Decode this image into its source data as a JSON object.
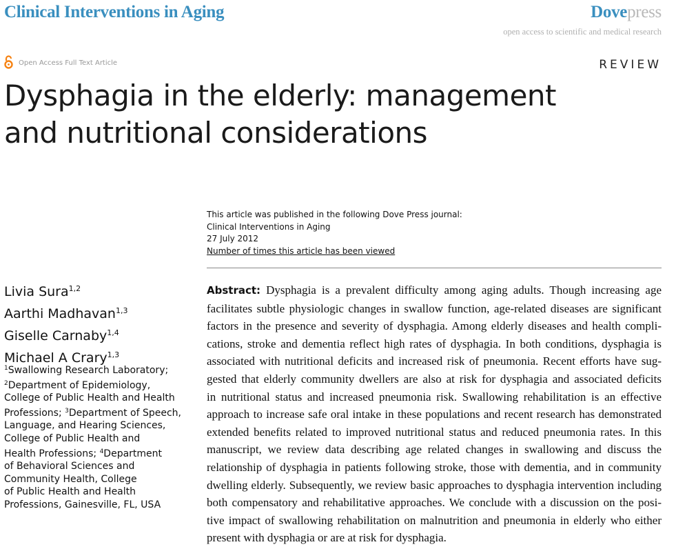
{
  "header": {
    "journal": "Clinical Interventions in Aging",
    "brand_part1": "Dove",
    "brand_part2": "press",
    "tagline": "open access to scientific and medical research",
    "open_access_label": "Open Access Full Text Article",
    "open_access_icon": "open-access-lock-icon",
    "article_type": "REVIEW",
    "accent_color": "#3a8fbf",
    "oa_color": "#f68212"
  },
  "title_lines": [
    "Dysphagia in the elderly: management",
    "and nutritional considerations"
  ],
  "pub_info": {
    "line1": "This article was published in the following Dove Press journal:",
    "journal": "Clinical Interventions in Aging",
    "date": "27 July 2012",
    "views_link": "Number of times this article has been viewed"
  },
  "authors": [
    {
      "name": "Livia Sura",
      "aff": "1,2"
    },
    {
      "name": "Aarthi Madhavan",
      "aff": "1,3"
    },
    {
      "name": "Giselle Carnaby",
      "aff": "1,4"
    },
    {
      "name": "Michael A Crary",
      "aff": "1,3"
    }
  ],
  "affiliation_lines": [
    {
      "sup": "1",
      "text": "Swallowing Research Laboratory;"
    },
    {
      "sup": "2",
      "text": "Department of Epidemiology,"
    },
    {
      "sup": "",
      "text": "College of Public Health and Health"
    },
    {
      "sup": "",
      "text": "Professions; ",
      "sup2": "3",
      "text2": "Department of Speech,"
    },
    {
      "sup": "",
      "text": "Language, and Hearing Sciences,"
    },
    {
      "sup": "",
      "text": "College of Public Health and"
    },
    {
      "sup": "",
      "text": "Health Professions; ",
      "sup2": "4",
      "text2": "Department"
    },
    {
      "sup": "",
      "text": "of Behavioral Sciences and"
    },
    {
      "sup": "",
      "text": "Community Health, College"
    },
    {
      "sup": "",
      "text": "of Public Health and Health"
    },
    {
      "sup": "",
      "text": "Professions, Gainesville, FL, USA"
    }
  ],
  "abstract": {
    "label": "Abstract:",
    "lines": [
      " Dysphagia is a prevalent difficulty among aging adults. Though increasing age",
      "facilitates subtle physiologic changes in swallow function, age-related diseases are significant",
      "factors in the presence and severity of dysphagia. Among elderly diseases and health compli-",
      "cations, stroke and dementia reflect high rates of dysphagia. In both conditions, dysphagia is",
      "associated with nutritional deficits and increased risk of pneumonia. Recent efforts have sug-",
      "gested that elderly community dwellers are also at risk for dysphagia and associated deficits",
      "in nutritional status and increased pneumonia risk. Swallowing rehabilitation is an effective",
      "approach to increase safe oral intake in these populations and recent research has demonstrated",
      "extended benefits related to improved nutritional status and reduced pneumonia rates. In this",
      "manuscript, we review data describing age related changes in swallowing and discuss the",
      "relationship of dysphagia in patients following stroke, those with dementia, and in community",
      "dwelling elderly. Subsequently, we review basic approaches to dysphagia intervention including",
      "both compensatory and rehabilitative approaches. We conclude with a discussion on the posi-",
      "tive impact of swallowing rehabilitation on malnutrition and pneumonia in elderly who either",
      "present with dysphagia or are at risk for dysphagia."
    ]
  }
}
